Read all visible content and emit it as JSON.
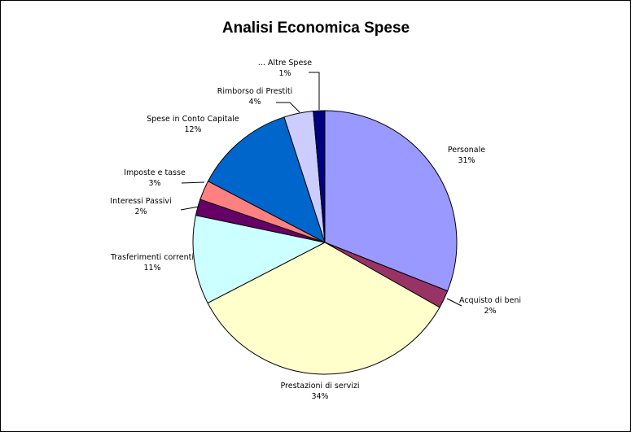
{
  "chart_data": {
    "type": "pie",
    "title": "Analisi Economica Spese",
    "start_angle_deg": 0,
    "direction": "clockwise",
    "legend": "none",
    "slices": [
      {
        "label": "Personale",
        "pct_label": "31%",
        "value": 31.0,
        "color": "#9999FF"
      },
      {
        "label": "Acquisto di beni",
        "pct_label": "2%",
        "value": 2.2,
        "color": "#993366"
      },
      {
        "label": "Prestazioni di servizi",
        "pct_label": "34%",
        "value": 34.2,
        "color": "#FFFFCC"
      },
      {
        "label": "Trasferimenti correnti",
        "pct_label": "11%",
        "value": 10.9,
        "color": "#CCFFFF"
      },
      {
        "label": "Interessi Passivi",
        "pct_label": "2%",
        "value": 2.0,
        "color": "#660066"
      },
      {
        "label": "Imposte e tasse",
        "pct_label": "3%",
        "value": 2.4,
        "color": "#FF8080"
      },
      {
        "label": "Spese in Conto Capitale",
        "pct_label": "12%",
        "value": 12.3,
        "color": "#0066CC"
      },
      {
        "label": "Rimborso di Prestiti",
        "pct_label": "4%",
        "value": 3.6,
        "color": "#CCCCFF"
      },
      {
        "label": "... Altre Spese",
        "pct_label": "1%",
        "value": 1.4,
        "color": "#000080"
      }
    ]
  }
}
